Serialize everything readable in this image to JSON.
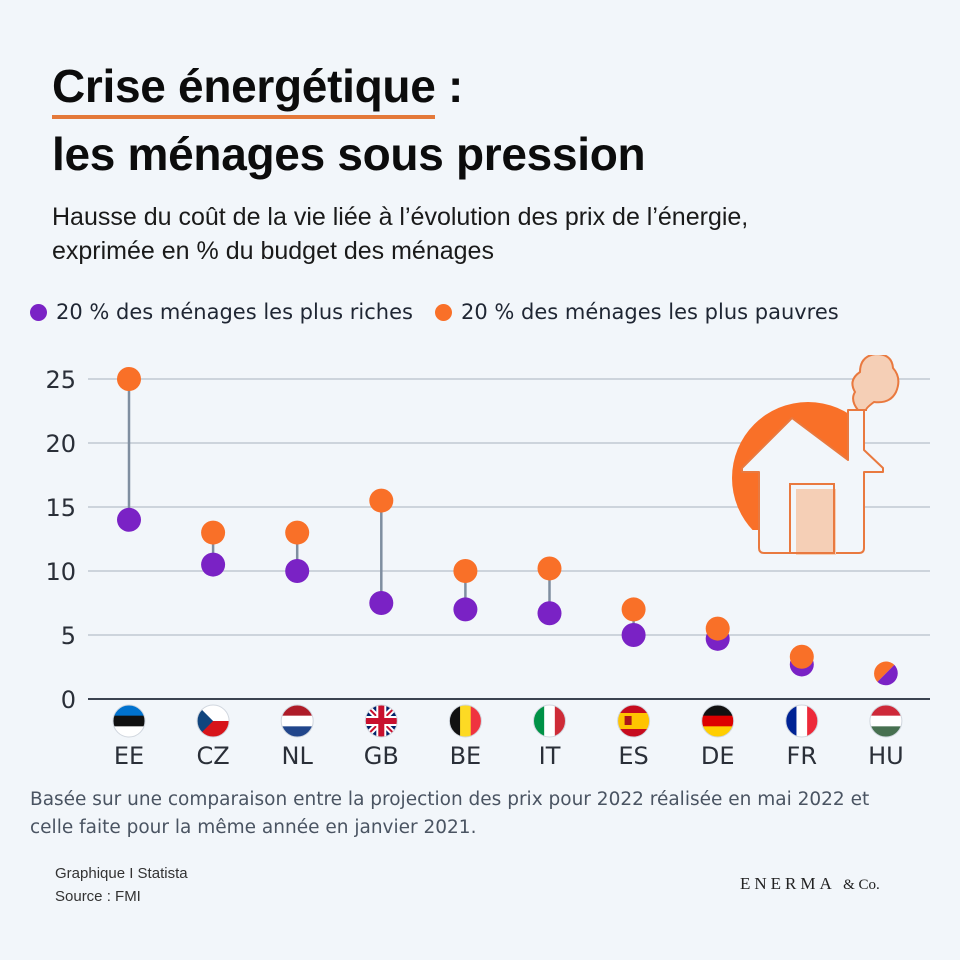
{
  "title": {
    "line1_highlight": "Crise énergétique",
    "line1_rest": " :",
    "line2": "les ménages sous pression"
  },
  "subtitle": "Hausse du coût de la vie liée à l’évolution des prix de l’énergie, exprimée en % du budget des ménages",
  "legend": [
    {
      "label": "20 % des ménages les plus riches",
      "color": "#7a22c5"
    },
    {
      "label": "20 % des ménages les plus pauvres",
      "color": "#f97028"
    }
  ],
  "note": "Basée sur une comparaison entre la projection des prix pour 2022 réalisée en mai 2022 et celle faite pour la même année en janvier 2021.",
  "credits": {
    "line1": "Graphique I Statista",
    "line2": "Source : FMI"
  },
  "brand": {
    "name": "ENERMA",
    "suffix": "& Co."
  },
  "illustration": "house-with-sun-and-chimney-smoke",
  "chart_data": {
    "type": "dumbbell",
    "title": "Crise énergétique : les ménages sous pression",
    "ylabel": "% du budget des ménages",
    "xlabel": "",
    "ylim": [
      0,
      25
    ],
    "yticks": [
      0,
      5,
      10,
      15,
      20,
      25
    ],
    "grid": true,
    "legend_position": "top",
    "categories": [
      "EE",
      "CZ",
      "NL",
      "GB",
      "BE",
      "IT",
      "ES",
      "DE",
      "FR",
      "HU"
    ],
    "flags": [
      "estonia-flag",
      "czech-flag",
      "netherlands-flag",
      "uk-flag",
      "belgium-flag",
      "italy-flag",
      "spain-flag",
      "germany-flag",
      "france-flag",
      "hungary-flag"
    ],
    "series": [
      {
        "name": "20 % des ménages les plus riches",
        "color": "#7a22c5",
        "values": [
          14.0,
          10.5,
          10.0,
          7.5,
          7.0,
          6.7,
          5.0,
          4.7,
          2.7,
          2.0
        ]
      },
      {
        "name": "20 % des ménages les plus pauvres",
        "color": "#f97028",
        "values": [
          25.0,
          13.0,
          13.0,
          15.5,
          10.0,
          10.2,
          7.0,
          5.5,
          3.3,
          2.0
        ]
      }
    ]
  }
}
